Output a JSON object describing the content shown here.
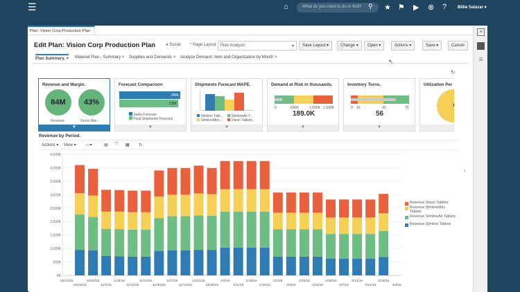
{
  "topbar": {
    "search_placeholder": "What do you need to do or find?",
    "user": "Billie Salazar ▾",
    "icons": [
      "menu-icon",
      "home-icon",
      "search-icon",
      "star-icon",
      "flag-icon",
      "notification-icon",
      "accessibility-icon",
      "help-icon"
    ]
  },
  "doc_tab": "Plan: Vision Corp Production Plan",
  "header": {
    "title": "Edit Plan: Vision Corp Production Plan",
    "social": "Social",
    "page_layout_label": "* Page Layout",
    "page_layout_value": "Plan Analysis",
    "save_layout": "Save Layout",
    "change": "Change",
    "open": "Open",
    "actions": "Actions",
    "save": "Save",
    "cancel": "Cancel"
  },
  "tabs": [
    "Plan Summary.",
    "Material Plan - Summary",
    "Supplies and Demands",
    "Analyze Demand: Item and Organization by Month"
  ],
  "tiles": {
    "revenue": {
      "title": "Revenue and Margin.",
      "v1": "84M",
      "l1": "Revenue",
      "v2": "43%",
      "l2": "Gross Mar..."
    },
    "forecast": {
      "title": "Forecast Comparison",
      "b1": "246K",
      "b2": "238K",
      "leg1": "Sales Forecast",
      "leg2": "Final Shipments Forecast"
    },
    "mape": {
      "title": "Shipments Forecast MAPE.",
      "leg": [
        "Slimline Tabl...",
        "SlimlineAir T...",
        "SlimlineMini ...",
        "Vision Tablets"
      ]
    },
    "risk": {
      "title": "Demand at Risk in thousands.",
      "ticks": [
        "0",
        "500K",
        "1,000K",
        "1,500K"
      ],
      "value": "189.0K"
    },
    "turns": {
      "title": "Inventory Turns.",
      "ticks": [
        "0",
        "10",
        "40",
        "75"
      ],
      "value": "56"
    },
    "util": {
      "title": "Utilization Per"
    }
  },
  "report": {
    "title": "Revenue by Period.",
    "actions": "Actions ▾",
    "view": "View ▾"
  },
  "colors": {
    "red": "#e8603c",
    "yellow": "#f6cf55",
    "green": "#6dbd85",
    "blue": "#2f7bb3"
  },
  "chart_data": {
    "type": "bar",
    "stacked": true,
    "ylim": [
      0,
      4500
    ],
    "yticks": [
      "0K",
      "500K",
      "1,000K",
      "1,500K",
      "2,000K",
      "2,500K",
      "3,000K",
      "3,500K",
      "4,000K",
      "4,500K"
    ],
    "categories": [
      "10/12/15",
      "10/19/15",
      "10/26/15",
      "11/2/15",
      "11/9/15",
      "11/16/15",
      "11/23/15",
      "11/30/15",
      "12/7/15",
      "12/14/15",
      "12/21/15",
      "12/28/15",
      "1/4/16",
      "1/11/16",
      "1/18/16",
      "1/25/16",
      "2/1/16",
      "2/8/16",
      "2/15/16",
      "2/22/16",
      "2/29/16",
      "3/7/16",
      "3/14/16",
      "3/21/16",
      "3/28/16",
      "4/4/16"
    ],
    "legend": "right",
    "series": [
      {
        "name": "Revenue Slimline Tablets",
        "color": "#2f7bb3",
        "values": [
          null,
          950,
          925,
          720,
          710,
          700,
          700,
          910,
          935,
          935,
          950,
          950,
          1035,
          1035,
          1035,
          1035,
          700,
          700,
          700,
          700,
          625,
          625,
          625,
          625,
          685,
          null
        ]
      },
      {
        "name": "Revenue SlimlineAir Tablets",
        "color": "#6dbd85",
        "values": [
          null,
          1310,
          1245,
          1010,
          1010,
          1000,
          1000,
          1220,
          1265,
          1265,
          1280,
          1270,
          1330,
          1330,
          1330,
          1330,
          1010,
          1010,
          1010,
          1010,
          915,
          915,
          915,
          915,
          960,
          null
        ]
      },
      {
        "name": "Revenue SlimlineMini Tablets",
        "color": "#f6cf55",
        "values": [
          null,
          800,
          800,
          640,
          650,
          650,
          650,
          800,
          800,
          800,
          820,
          800,
          840,
          840,
          840,
          840,
          620,
          620,
          620,
          620,
          610,
          610,
          610,
          610,
          665,
          null
        ]
      },
      {
        "name": "Revenue Vision Tablets",
        "color": "#e8603c",
        "values": [
          null,
          1040,
          990,
          810,
          800,
          800,
          800,
          970,
          990,
          990,
          1030,
          970,
          1045,
          1045,
          1045,
          1045,
          750,
          750,
          750,
          750,
          670,
          670,
          670,
          670,
          720,
          null
        ]
      }
    ]
  }
}
